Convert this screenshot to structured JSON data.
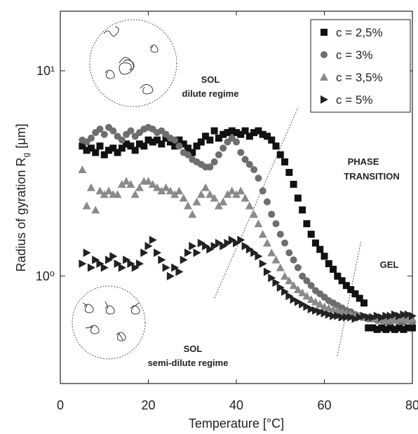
{
  "chart_data": {
    "type": "scatter",
    "xlabel": "Temperature [°C]",
    "ylabel": "Radius of gyration R",
    "ylabel_subscript": "g",
    "ylabel_unit": "[μm]",
    "yscale": "log",
    "xlim": [
      0,
      80
    ],
    "ylim": [
      0.3,
      19.5
    ],
    "xticks": [
      0,
      20,
      40,
      60,
      80
    ],
    "yticks": [
      {
        "value": 1,
        "label": "10⁰"
      },
      {
        "value": 10,
        "label": "10¹"
      }
    ],
    "legend": "upper right",
    "annotations": [
      "SOL",
      "dilute regime",
      "PHASE",
      "TRANSITION",
      "GEL",
      "SOL",
      "semi-dilute regime"
    ],
    "x": [
      5,
      6,
      7,
      8,
      9,
      10,
      11,
      12,
      13,
      14,
      15,
      16,
      17,
      18,
      19,
      20,
      21,
      22,
      23,
      24,
      25,
      26,
      27,
      28,
      29,
      30,
      31,
      32,
      33,
      34,
      35,
      36,
      37,
      38,
      39,
      40,
      41,
      42,
      43,
      44,
      45,
      46,
      47,
      48,
      49,
      50,
      51,
      52,
      53,
      54,
      55,
      56,
      57,
      58,
      59,
      60,
      61,
      62,
      63,
      64,
      65,
      66,
      67,
      68,
      69,
      70,
      71,
      72,
      73,
      74,
      75,
      76,
      77,
      78,
      79,
      80
    ],
    "series": [
      {
        "name": "c = 2,5%",
        "marker": "square",
        "color": "#111111",
        "values": [
          4.3,
          4.1,
          4.2,
          4.0,
          4.3,
          3.9,
          4.1,
          4.2,
          4.0,
          4.2,
          4.4,
          4.3,
          4.1,
          4.4,
          4.3,
          4.6,
          4.5,
          4.6,
          4.4,
          4.7,
          4.5,
          4.3,
          4.6,
          4.4,
          4.2,
          4.0,
          4.3,
          4.5,
          4.8,
          4.6,
          5.1,
          4.7,
          4.9,
          5.0,
          5.1,
          5.0,
          4.9,
          5.1,
          4.8,
          5.0,
          5.1,
          4.9,
          4.8,
          4.6,
          4.3,
          3.9,
          3.6,
          3.2,
          2.8,
          2.4,
          2.1,
          1.8,
          1.6,
          1.45,
          1.35,
          1.25,
          1.15,
          1.08,
          1.0,
          0.95,
          0.9,
          0.86,
          0.82,
          0.78,
          0.74,
          0.56,
          0.56,
          0.55,
          0.56,
          0.55,
          0.56,
          0.55,
          0.56,
          0.55,
          0.56,
          0.56
        ]
      },
      {
        "name": "c = 3%",
        "marker": "circle",
        "color": "#6e6e6e",
        "values": [
          4.6,
          4.5,
          4.7,
          5.0,
          5.2,
          4.9,
          5.3,
          5.1,
          4.8,
          4.6,
          4.9,
          5.1,
          4.8,
          5.0,
          5.2,
          5.3,
          5.2,
          5.0,
          5.1,
          4.9,
          4.7,
          4.6,
          4.3,
          4.0,
          3.9,
          3.7,
          3.6,
          3.5,
          3.4,
          3.4,
          3.6,
          3.9,
          4.2,
          4.5,
          4.7,
          4.5,
          4.0,
          3.7,
          3.5,
          3.3,
          3.0,
          2.6,
          2.3,
          2.0,
          1.8,
          1.6,
          1.45,
          1.3,
          1.2,
          1.1,
          1.0,
          0.95,
          0.9,
          0.85,
          0.82,
          0.79,
          0.76,
          0.74,
          0.72,
          0.7,
          0.68,
          0.67,
          0.65,
          0.64,
          0.63,
          0.62,
          0.62,
          0.61,
          0.61,
          0.6,
          0.6,
          0.61,
          0.6,
          0.6,
          0.61,
          0.6
        ]
      },
      {
        "name": "c = 3,5%",
        "marker": "triangle-up",
        "color": "#8a8a8a",
        "values": [
          3.3,
          2.2,
          2.7,
          2.1,
          2.6,
          2.5,
          2.6,
          2.5,
          2.5,
          2.8,
          2.9,
          2.8,
          2.5,
          2.7,
          2.9,
          2.9,
          2.8,
          2.7,
          2.6,
          2.7,
          2.6,
          2.5,
          2.6,
          2.4,
          2.2,
          2.0,
          2.3,
          2.5,
          2.7,
          2.5,
          2.4,
          2.2,
          2.3,
          2.5,
          2.6,
          2.5,
          2.6,
          2.4,
          2.2,
          2.0,
          1.8,
          1.6,
          1.45,
          1.3,
          1.2,
          1.1,
          1.0,
          0.95,
          0.9,
          0.86,
          0.83,
          0.8,
          0.77,
          0.75,
          0.73,
          0.71,
          0.7,
          0.69,
          0.68,
          0.67,
          0.66,
          0.65,
          0.64,
          0.64,
          0.63,
          0.63,
          0.62,
          0.62,
          0.62,
          0.61,
          0.62,
          0.61,
          0.62,
          0.62,
          0.61,
          0.62
        ]
      },
      {
        "name": "c = 5%",
        "marker": "triangle-right",
        "color": "#222222",
        "values": [
          1.15,
          1.3,
          1.1,
          1.2,
          1.15,
          1.1,
          1.2,
          1.25,
          1.15,
          1.1,
          1.2,
          1.15,
          1.1,
          1.15,
          1.3,
          1.4,
          1.5,
          1.3,
          1.2,
          1.1,
          1.0,
          1.1,
          1.05,
          1.2,
          1.3,
          1.4,
          1.3,
          1.45,
          1.4,
          1.35,
          1.4,
          1.45,
          1.4,
          1.45,
          1.5,
          1.45,
          1.5,
          1.4,
          1.35,
          1.3,
          1.25,
          1.15,
          1.05,
          0.98,
          0.93,
          0.88,
          0.84,
          0.8,
          0.77,
          0.75,
          0.73,
          0.71,
          0.69,
          0.68,
          0.67,
          0.66,
          0.65,
          0.64,
          0.64,
          0.63,
          0.63,
          0.63,
          0.62,
          0.63,
          0.64,
          0.63,
          0.63,
          0.64,
          0.63,
          0.64,
          0.64,
          0.65,
          0.64,
          0.65,
          0.65,
          0.64
        ]
      }
    ]
  }
}
